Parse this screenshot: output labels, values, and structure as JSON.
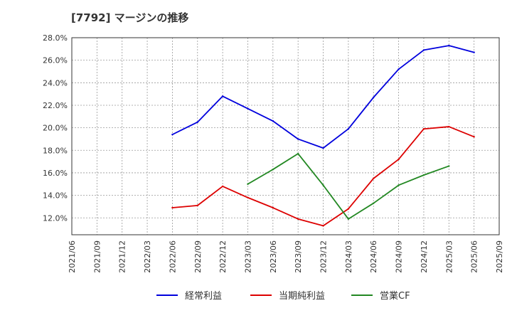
{
  "chart_data": {
    "type": "line",
    "title": "[7792]  マージンの推移",
    "xlabel": "",
    "ylabel": "",
    "ylim": [
      10.5,
      28.0
    ],
    "y_ticks": [
      "12.0%",
      "14.0%",
      "16.0%",
      "18.0%",
      "20.0%",
      "22.0%",
      "24.0%",
      "26.0%",
      "28.0%"
    ],
    "y_tick_values": [
      12,
      14,
      16,
      18,
      20,
      22,
      24,
      26,
      28
    ],
    "x": [
      "2021/06",
      "2021/09",
      "2021/12",
      "2022/03",
      "2022/06",
      "2022/09",
      "2022/12",
      "2023/03",
      "2023/06",
      "2023/09",
      "2023/12",
      "2024/03",
      "2024/06",
      "2024/09",
      "2024/12",
      "2025/03",
      "2025/06",
      "2025/09"
    ],
    "grid": true,
    "legend_position": "bottom",
    "series": [
      {
        "name": "経常利益",
        "color": "#0000dd",
        "values": [
          null,
          null,
          null,
          null,
          19.4,
          20.5,
          22.8,
          21.7,
          20.6,
          19.0,
          18.2,
          19.9,
          22.7,
          25.2,
          26.9,
          27.3,
          26.7,
          null
        ]
      },
      {
        "name": "当期純利益",
        "color": "#dd0000",
        "values": [
          null,
          null,
          null,
          null,
          12.9,
          13.1,
          14.8,
          13.8,
          12.9,
          11.9,
          11.3,
          12.8,
          15.5,
          17.2,
          19.9,
          20.1,
          19.2,
          null
        ]
      },
      {
        "name": "営業CF",
        "color": "#228822",
        "values": [
          null,
          null,
          null,
          null,
          null,
          null,
          null,
          15.0,
          16.3,
          17.7,
          14.9,
          11.9,
          13.3,
          14.9,
          15.8,
          16.6,
          null,
          null
        ]
      }
    ]
  }
}
